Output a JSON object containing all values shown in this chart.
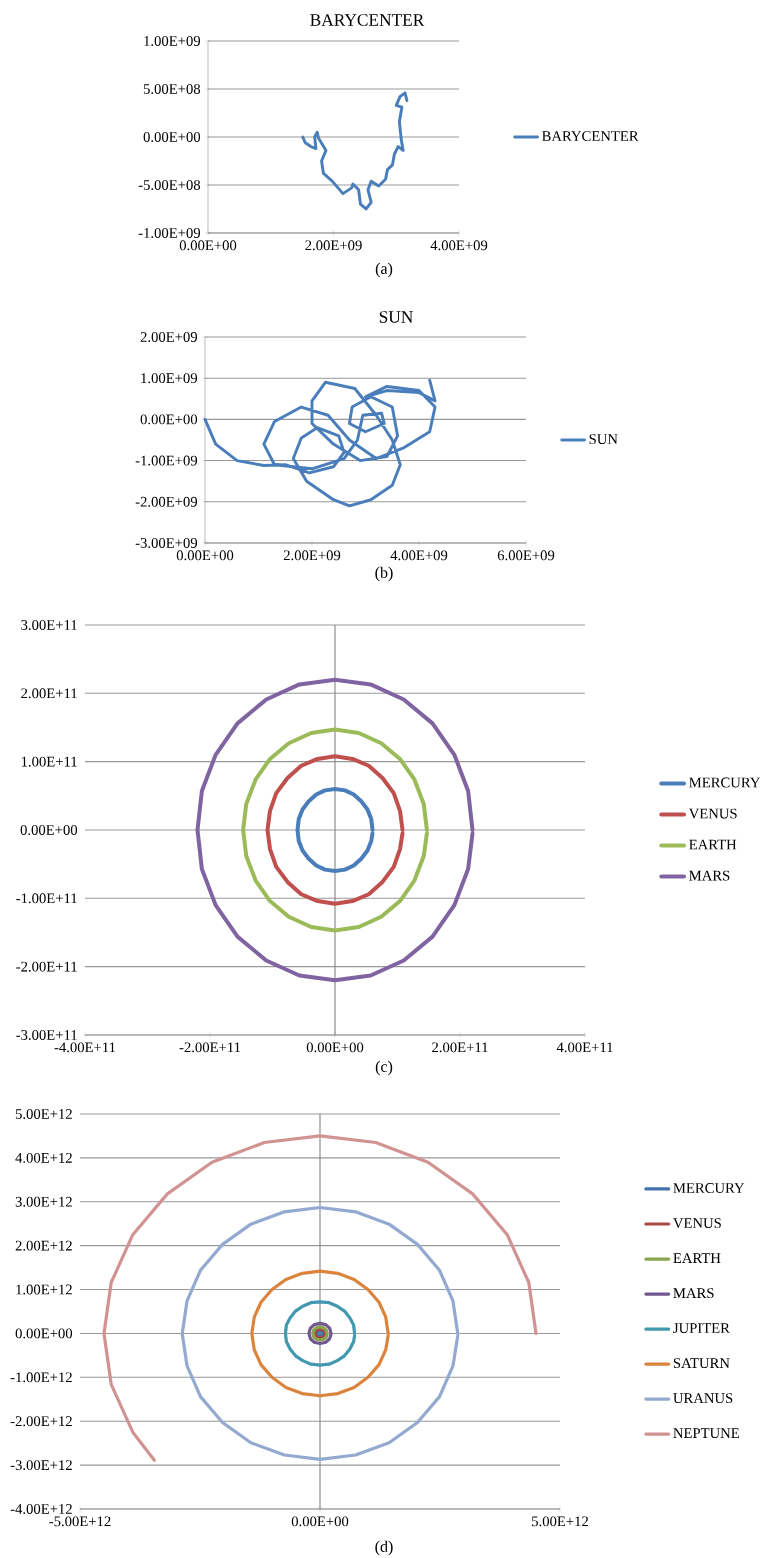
{
  "chart_data": [
    {
      "type": "line",
      "title": "BARYCENTER",
      "annotations": [
        "(a)"
      ],
      "grid": "y",
      "legend": "right",
      "xlim": [
        0,
        4000000000.0
      ],
      "ylim": [
        -1000000000.0,
        1000000000.0
      ],
      "xticks": [
        {
          "value": 0,
          "label": "0.00E+00"
        },
        {
          "value": 2000000000.0,
          "label": "2.00E+09"
        },
        {
          "value": 4000000000.0,
          "label": "4.00E+09"
        }
      ],
      "yticks": [
        {
          "value": -1000000000.0,
          "label": "-1.00E+09"
        },
        {
          "value": -500000000.0,
          "label": "-5.00E+08"
        },
        {
          "value": 0,
          "label": "0.00E+00"
        },
        {
          "value": 500000000.0,
          "label": "5.00E+08"
        },
        {
          "value": 1000000000.0,
          "label": "1.00E+09"
        }
      ],
      "series": [
        {
          "name": "BARYCENTER",
          "color": "#4a7ebb",
          "x": [
            1510000000.0,
            1550000000.0,
            1640000000.0,
            1720000000.0,
            1700000000.0,
            1740000000.0,
            1760000000.0,
            1880000000.0,
            1810000000.0,
            1840000000.0,
            1980000000.0,
            2150000000.0,
            2290000000.0,
            2310000000.0,
            2400000000.0,
            2430000000.0,
            2520000000.0,
            2600000000.0,
            2550000000.0,
            2600000000.0,
            2720000000.0,
            2830000000.0,
            2860000000.0,
            2940000000.0,
            2970000000.0,
            3030000000.0,
            3110000000.0,
            3080000000.0,
            3050000000.0,
            3090000000.0,
            3000000000.0,
            3060000000.0,
            3140000000.0,
            3170000000.0
          ],
          "values": [
            0,
            -60000000.0,
            -100000000.0,
            -120000000.0,
            0,
            50000000.0,
            -10000000.0,
            -140000000.0,
            -250000000.0,
            -380000000.0,
            -460000000.0,
            -590000000.0,
            -530000000.0,
            -490000000.0,
            -550000000.0,
            -700000000.0,
            -750000000.0,
            -680000000.0,
            -550000000.0,
            -460000000.0,
            -510000000.0,
            -440000000.0,
            -340000000.0,
            -290000000.0,
            -180000000.0,
            -100000000.0,
            -140000000.0,
            -30000000.0,
            160000000.0,
            310000000.0,
            330000000.0,
            420000000.0,
            460000000.0,
            380000000.0
          ]
        }
      ]
    },
    {
      "type": "line",
      "title": "SUN",
      "annotations": [
        "(b)"
      ],
      "grid": "y",
      "legend": "right",
      "xlim": [
        0,
        6000000000.0
      ],
      "ylim": [
        -3000000000.0,
        2000000000.0
      ],
      "xticks": [
        {
          "value": 0,
          "label": "0.00E+00"
        },
        {
          "value": 2000000000.0,
          "label": "2.00E+09"
        },
        {
          "value": 4000000000.0,
          "label": "4.00E+09"
        },
        {
          "value": 6000000000.0,
          "label": "6.00E+09"
        }
      ],
      "yticks": [
        {
          "value": -3000000000.0,
          "label": "-3.00E+09"
        },
        {
          "value": -2000000000.0,
          "label": "-2.00E+09"
        },
        {
          "value": -1000000000.0,
          "label": "-1.00E+09"
        },
        {
          "value": 0,
          "label": "0.00E+00"
        },
        {
          "value": 1000000000.0,
          "label": "1.00E+09"
        },
        {
          "value": 2000000000.0,
          "label": "2.00E+09"
        }
      ],
      "series": [
        {
          "name": "SUN",
          "color": "#4a7ebb",
          "x": [
            0,
            200000000.0,
            600000000.0,
            1100000000.0,
            1500000000.0,
            1950000000.0,
            2400000000.0,
            2600000000.0,
            2500000000.0,
            2100000000.0,
            1800000000.0,
            1650000000.0,
            1900000000.0,
            2400000000.0,
            2700000000.0,
            3100000000.0,
            3500000000.0,
            3650000000.0,
            3500000000.0,
            3200000000.0,
            2800000000.0,
            2250000000.0,
            2000000000.0,
            2000000000.0,
            2400000000.0,
            2900000000.0,
            3400000000.0,
            3600000000.0,
            3500000000.0,
            3100000000.0,
            2750000000.0,
            2700000000.0,
            3000000000.0,
            3350000000.0,
            3300000000.0,
            2950000000.0,
            2850000000.0,
            2600000000.0,
            2000000000.0,
            1300000000.0,
            1100000000.0,
            1300000000.0,
            1800000000.0,
            2300000000.0,
            2700000000.0,
            3200000000.0,
            3700000000.0,
            4200000000.0,
            4300000000.0,
            4000000000.0,
            3400000000.0,
            3000000000.0,
            3400000000.0,
            4000000000.0,
            4300000000.0,
            4200000000.0
          ],
          "values": [
            0,
            -600000000.0,
            -1000000000.0,
            -1120000000.0,
            -1100000000.0,
            -1300000000.0,
            -1150000000.0,
            -800000000.0,
            -400000000.0,
            -200000000.0,
            -450000000.0,
            -950000000.0,
            -1500000000.0,
            -1950000000.0,
            -2100000000.0,
            -1950000000.0,
            -1600000000.0,
            -1100000000.0,
            -500000000.0,
            100000000.0,
            750000000.0,
            900000000.0,
            450000000.0,
            -100000000.0,
            -600000000.0,
            -1000000000.0,
            -900000000.0,
            -400000000.0,
            300000000.0,
            550000000.0,
            300000000.0,
            -100000000.0,
            -300000000.0,
            -100000000.0,
            150000000.0,
            100000000.0,
            -500000000.0,
            -950000000.0,
            -1200000000.0,
            -1100000000.0,
            -600000000.0,
            -50000000.0,
            300000000.0,
            100000000.0,
            -500000000.0,
            -950000000.0,
            -700000000.0,
            -300000000.0,
            300000000.0,
            700000000.0,
            800000000.0,
            550000000.0,
            700000000.0,
            650000000.0,
            450000000.0,
            950000000.0
          ]
        }
      ]
    },
    {
      "type": "line",
      "annotations": [
        "(c)"
      ],
      "grid": "y",
      "legend": "right",
      "xlim": [
        -400000000000.0,
        400000000000.0
      ],
      "ylim": [
        -300000000000.0,
        300000000000.0
      ],
      "xticks": [
        {
          "value": -400000000000.0,
          "label": "-4.00E+11"
        },
        {
          "value": -200000000000.0,
          "label": "-2.00E+11"
        },
        {
          "value": 0,
          "label": "0.00E+00"
        },
        {
          "value": 200000000000.0,
          "label": "2.00E+11"
        },
        {
          "value": 400000000000.0,
          "label": "4.00E+11"
        }
      ],
      "yticks": [
        {
          "value": -300000000000.0,
          "label": "-3.00E+11"
        },
        {
          "value": -200000000000.0,
          "label": "-2.00E+11"
        },
        {
          "value": -100000000000.0,
          "label": "-1.00E+11"
        },
        {
          "value": 0,
          "label": "0.00E+00"
        },
        {
          "value": 100000000000.0,
          "label": "1.00E+11"
        },
        {
          "value": 200000000000.0,
          "label": "2.00E+11"
        },
        {
          "value": 300000000000.0,
          "label": "3.00E+11"
        }
      ],
      "series": [
        {
          "name": "MERCURY",
          "color": "#4a7ebb",
          "x": [
            60000000000.0,
            58000000000.0,
            52000000000.0,
            42000000000.0,
            30000000000.0,
            16000000000.0,
            0,
            -16000000000.0,
            -30000000000.0,
            -42000000000.0,
            -52000000000.0,
            -58000000000.0,
            -60000000000.0,
            -58000000000.0,
            -52000000000.0,
            -42000000000.0,
            -30000000000.0,
            -16000000000.0,
            0,
            16000000000.0,
            30000000000.0,
            42000000000.0,
            52000000000.0,
            58000000000.0,
            60000000000.0
          ],
          "values": [
            0,
            16000000000.0,
            30000000000.0,
            42000000000.0,
            52000000000.0,
            58000000000.0,
            60000000000.0,
            58000000000.0,
            52000000000.0,
            42000000000.0,
            30000000000.0,
            16000000000.0,
            0,
            -16000000000.0,
            -30000000000.0,
            -42000000000.0,
            -52000000000.0,
            -58000000000.0,
            -60000000000.0,
            -58000000000.0,
            -52000000000.0,
            -42000000000.0,
            -30000000000.0,
            -16000000000.0,
            -5000000000.0
          ]
        },
        {
          "name": "VENUS",
          "color": "#c0504d",
          "x": [
            108000000000.0,
            104000000000.0,
            94000000000.0,
            76000000000.0,
            54000000000.0,
            28000000000.0,
            0,
            -28000000000.0,
            -54000000000.0,
            -76000000000.0,
            -94000000000.0,
            -104000000000.0,
            -108000000000.0,
            -104000000000.0,
            -94000000000.0,
            -76000000000.0,
            -54000000000.0,
            -28000000000.0,
            0,
            28000000000.0,
            54000000000.0,
            76000000000.0,
            94000000000.0,
            104000000000.0,
            108000000000.0
          ],
          "values": [
            0,
            28000000000.0,
            54000000000.0,
            76000000000.0,
            94000000000.0,
            104000000000.0,
            108000000000.0,
            104000000000.0,
            94000000000.0,
            76000000000.0,
            54000000000.0,
            28000000000.0,
            0,
            -28000000000.0,
            -54000000000.0,
            -76000000000.0,
            -94000000000.0,
            -104000000000.0,
            -108000000000.0,
            -104000000000.0,
            -94000000000.0,
            -76000000000.0,
            -54000000000.0,
            -28000000000.0,
            -5000000000.0
          ]
        },
        {
          "name": "EARTH",
          "color": "#9bbb59",
          "x": [
            147000000000.0,
            142000000000.0,
            127000000000.0,
            104000000000.0,
            74000000000.0,
            38000000000.0,
            0,
            -38000000000.0,
            -74000000000.0,
            -104000000000.0,
            -127000000000.0,
            -142000000000.0,
            -147000000000.0,
            -142000000000.0,
            -127000000000.0,
            -104000000000.0,
            -74000000000.0,
            -38000000000.0,
            0,
            38000000000.0,
            74000000000.0,
            104000000000.0,
            127000000000.0,
            142000000000.0,
            147000000000.0
          ],
          "values": [
            0,
            38000000000.0,
            74000000000.0,
            104000000000.0,
            127000000000.0,
            142000000000.0,
            147000000000.0,
            142000000000.0,
            127000000000.0,
            104000000000.0,
            74000000000.0,
            38000000000.0,
            0,
            -38000000000.0,
            -74000000000.0,
            -104000000000.0,
            -127000000000.0,
            -142000000000.0,
            -147000000000.0,
            -142000000000.0,
            -127000000000.0,
            -104000000000.0,
            -74000000000.0,
            -38000000000.0,
            -5000000000.0
          ]
        },
        {
          "name": "MARS",
          "color": "#8064a2",
          "x": [
            220000000000.0,
            213000000000.0,
            191000000000.0,
            156000000000.0,
            110000000000.0,
            57000000000.0,
            0,
            -57000000000.0,
            -110000000000.0,
            -156000000000.0,
            -191000000000.0,
            -213000000000.0,
            -220000000000.0,
            -213000000000.0,
            -191000000000.0,
            -156000000000.0,
            -110000000000.0,
            -57000000000.0,
            0,
            57000000000.0,
            110000000000.0,
            156000000000.0,
            191000000000.0,
            213000000000.0,
            220000000000.0
          ],
          "values": [
            0,
            57000000000.0,
            110000000000.0,
            156000000000.0,
            191000000000.0,
            213000000000.0,
            220000000000.0,
            213000000000.0,
            191000000000.0,
            156000000000.0,
            110000000000.0,
            57000000000.0,
            0,
            -57000000000.0,
            -110000000000.0,
            -156000000000.0,
            -191000000000.0,
            -213000000000.0,
            -220000000000.0,
            -213000000000.0,
            -191000000000.0,
            -156000000000.0,
            -110000000000.0,
            -57000000000.0,
            -5000000000.0
          ]
        }
      ]
    },
    {
      "type": "line",
      "annotations": [
        "(d)"
      ],
      "grid": "y",
      "legend": "right",
      "xlim": [
        -5000000000000.0,
        5000000000000.0
      ],
      "ylim": [
        -4000000000000.0,
        5000000000000.0
      ],
      "xticks": [
        {
          "value": -5000000000000.0,
          "label": "-5.00E+12"
        },
        {
          "value": 0,
          "label": "0.00E+00"
        },
        {
          "value": 5000000000000.0,
          "label": "5.00E+12"
        }
      ],
      "yticks": [
        {
          "value": -4000000000000.0,
          "label": "-4.00E+12"
        },
        {
          "value": -3000000000000.0,
          "label": "-3.00E+12"
        },
        {
          "value": -2000000000000.0,
          "label": "-2.00E+12"
        },
        {
          "value": -1000000000000.0,
          "label": "-1.00E+12"
        },
        {
          "value": 0,
          "label": "0.00E+00"
        },
        {
          "value": 1000000000000.0,
          "label": "1.00E+12"
        },
        {
          "value": 2000000000000.0,
          "label": "2.00E+12"
        },
        {
          "value": 3000000000000.0,
          "label": "3.00E+12"
        },
        {
          "value": 4000000000000.0,
          "label": "4.00E+12"
        },
        {
          "value": 5000000000000.0,
          "label": "5.00E+12"
        }
      ],
      "series": [
        {
          "name": "MERCURY",
          "color": "#4572a7",
          "x": [
            60000000000.0,
            40000000000.0,
            0,
            -40000000000.0,
            -60000000000.0,
            -40000000000.0,
            0,
            40000000000.0,
            60000000000.0
          ],
          "values": [
            0,
            40000000000.0,
            60000000000.0,
            40000000000.0,
            0,
            -40000000000.0,
            -60000000000.0,
            -40000000000.0,
            -20000000000.0
          ]
        },
        {
          "name": "VENUS",
          "color": "#aa4643",
          "x": [
            110000000000.0,
            80000000000.0,
            0,
            -80000000000.0,
            -110000000000.0,
            -80000000000.0,
            0,
            80000000000.0,
            110000000000.0
          ],
          "values": [
            0,
            80000000000.0,
            110000000000.0,
            80000000000.0,
            0,
            -80000000000.0,
            -110000000000.0,
            -80000000000.0,
            -20000000000.0
          ]
        },
        {
          "name": "EARTH",
          "color": "#89a54e",
          "x": [
            150000000000.0,
            130000000000.0,
            80000000000.0,
            0,
            -80000000000.0,
            -130000000000.0,
            -150000000000.0,
            -130000000000.0,
            -80000000000.0,
            0,
            80000000000.0,
            130000000000.0,
            150000000000.0
          ],
          "values": [
            0,
            80000000000.0,
            130000000000.0,
            150000000000.0,
            130000000000.0,
            80000000000.0,
            0,
            -80000000000.0,
            -130000000000.0,
            -150000000000.0,
            -130000000000.0,
            -80000000000.0,
            -20000000000.0
          ]
        },
        {
          "name": "MARS",
          "color": "#71588f",
          "x": [
            230000000000.0,
            200000000000.0,
            120000000000.0,
            0,
            -120000000000.0,
            -200000000000.0,
            -230000000000.0,
            -200000000000.0,
            -120000000000.0,
            0,
            120000000000.0,
            200000000000.0,
            230000000000.0
          ],
          "values": [
            0,
            120000000000.0,
            200000000000.0,
            230000000000.0,
            200000000000.0,
            120000000000.0,
            0,
            -120000000000.0,
            -200000000000.0,
            -230000000000.0,
            -200000000000.0,
            -120000000000.0,
            -20000000000.0
          ]
        },
        {
          "name": "JUPITER",
          "color": "#4198af",
          "x": [
            720000000000.0,
            700000000000.0,
            620000000000.0,
            510000000000.0,
            360000000000.0,
            190000000000.0,
            0,
            -190000000000.0,
            -360000000000.0,
            -510000000000.0,
            -620000000000.0,
            -700000000000.0,
            -720000000000.0,
            -700000000000.0,
            -620000000000.0,
            -510000000000.0,
            -360000000000.0,
            -190000000000.0,
            0,
            190000000000.0,
            360000000000.0,
            510000000000.0,
            620000000000.0,
            700000000000.0,
            720000000000.0
          ],
          "values": [
            0,
            190000000000.0,
            360000000000.0,
            510000000000.0,
            620000000000.0,
            700000000000.0,
            720000000000.0,
            700000000000.0,
            620000000000.0,
            510000000000.0,
            360000000000.0,
            190000000000.0,
            0,
            -190000000000.0,
            -360000000000.0,
            -510000000000.0,
            -620000000000.0,
            -700000000000.0,
            -720000000000.0,
            -700000000000.0,
            -620000000000.0,
            -510000000000.0,
            -360000000000.0,
            -190000000000.0,
            -50000000000.0
          ]
        },
        {
          "name": "SATURN",
          "color": "#db843d",
          "x": [
            1420000000000.0,
            1370000000000.0,
            1230000000000.0,
            1000000000000.0,
            710000000000.0,
            370000000000.0,
            0,
            -370000000000.0,
            -710000000000.0,
            -1000000000000.0,
            -1230000000000.0,
            -1370000000000.0,
            -1420000000000.0,
            -1370000000000.0,
            -1230000000000.0,
            -1000000000000.0,
            -710000000000.0,
            -370000000000.0,
            0,
            370000000000.0,
            710000000000.0,
            1000000000000.0,
            1230000000000.0,
            1370000000000.0,
            1420000000000.0
          ],
          "values": [
            0,
            370000000000.0,
            710000000000.0,
            1000000000000.0,
            1230000000000.0,
            1370000000000.0,
            1420000000000.0,
            1370000000000.0,
            1230000000000.0,
            1000000000000.0,
            710000000000.0,
            370000000000.0,
            0,
            -370000000000.0,
            -710000000000.0,
            -1000000000000.0,
            -1230000000000.0,
            -1370000000000.0,
            -1420000000000.0,
            -1370000000000.0,
            -1230000000000.0,
            -1000000000000.0,
            -710000000000.0,
            -370000000000.0,
            -50000000000.0
          ]
        },
        {
          "name": "URANUS",
          "color": "#93a9cf",
          "x": [
            2870000000000.0,
            2770000000000.0,
            2490000000000.0,
            2030000000000.0,
            1440000000000.0,
            740000000000.0,
            0,
            -740000000000.0,
            -1440000000000.0,
            -2030000000000.0,
            -2490000000000.0,
            -2770000000000.0,
            -2870000000000.0,
            -2770000000000.0,
            -2490000000000.0,
            -2030000000000.0,
            -1440000000000.0,
            -740000000000.0,
            0,
            740000000000.0,
            1440000000000.0,
            2030000000000.0,
            2490000000000.0,
            2770000000000.0,
            2870000000000.0
          ],
          "values": [
            0,
            740000000000.0,
            1440000000000.0,
            2030000000000.0,
            2490000000000.0,
            2770000000000.0,
            2870000000000.0,
            2770000000000.0,
            2490000000000.0,
            2030000000000.0,
            1440000000000.0,
            740000000000.0,
            0,
            -740000000000.0,
            -1440000000000.0,
            -2030000000000.0,
            -2490000000000.0,
            -2770000000000.0,
            -2870000000000.0,
            -2770000000000.0,
            -2490000000000.0,
            -2030000000000.0,
            -1440000000000.0,
            -740000000000.0,
            -50000000000.0
          ]
        },
        {
          "name": "NEPTUNE",
          "color": "#d19392",
          "x": [
            4500000000000.0,
            4350000000000.0,
            3900000000000.0,
            3180000000000.0,
            2250000000000.0,
            1160000000000.0,
            0,
            -1160000000000.0,
            -2250000000000.0,
            -3180000000000.0,
            -3900000000000.0,
            -4350000000000.0,
            -4500000000000.0,
            -4350000000000.0,
            -3900000000000.0,
            -3450000000000.0
          ],
          "values": [
            0,
            1160000000000.0,
            2250000000000.0,
            3180000000000.0,
            3900000000000.0,
            4350000000000.0,
            4500000000000.0,
            4350000000000.0,
            3900000000000.0,
            3180000000000.0,
            2250000000000.0,
            1160000000000.0,
            0,
            -1160000000000.0,
            -2250000000000.0,
            -2890000000000.0
          ]
        }
      ]
    }
  ]
}
